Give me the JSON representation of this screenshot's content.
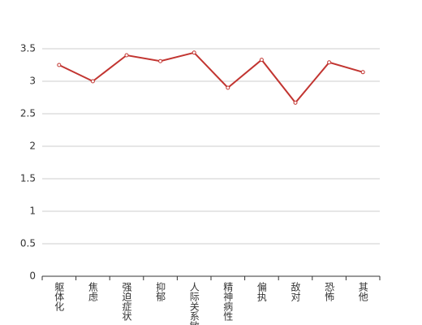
{
  "chart_data": {
    "type": "line",
    "categories": [
      "躯体化",
      "焦虑",
      "强迫症状",
      "抑郁",
      "人际关系敏感",
      "精神病性",
      "偏执",
      "敌对",
      "恐怖",
      "其他"
    ],
    "values": [
      3.25,
      3.0,
      3.4,
      3.31,
      3.44,
      2.9,
      3.33,
      2.67,
      3.29,
      3.14
    ],
    "color": "#c23531",
    "ylim": [
      0,
      3.5
    ],
    "yticks": [
      0,
      0.5,
      1,
      1.5,
      2,
      2.5,
      3,
      3.5
    ],
    "grid": true
  }
}
